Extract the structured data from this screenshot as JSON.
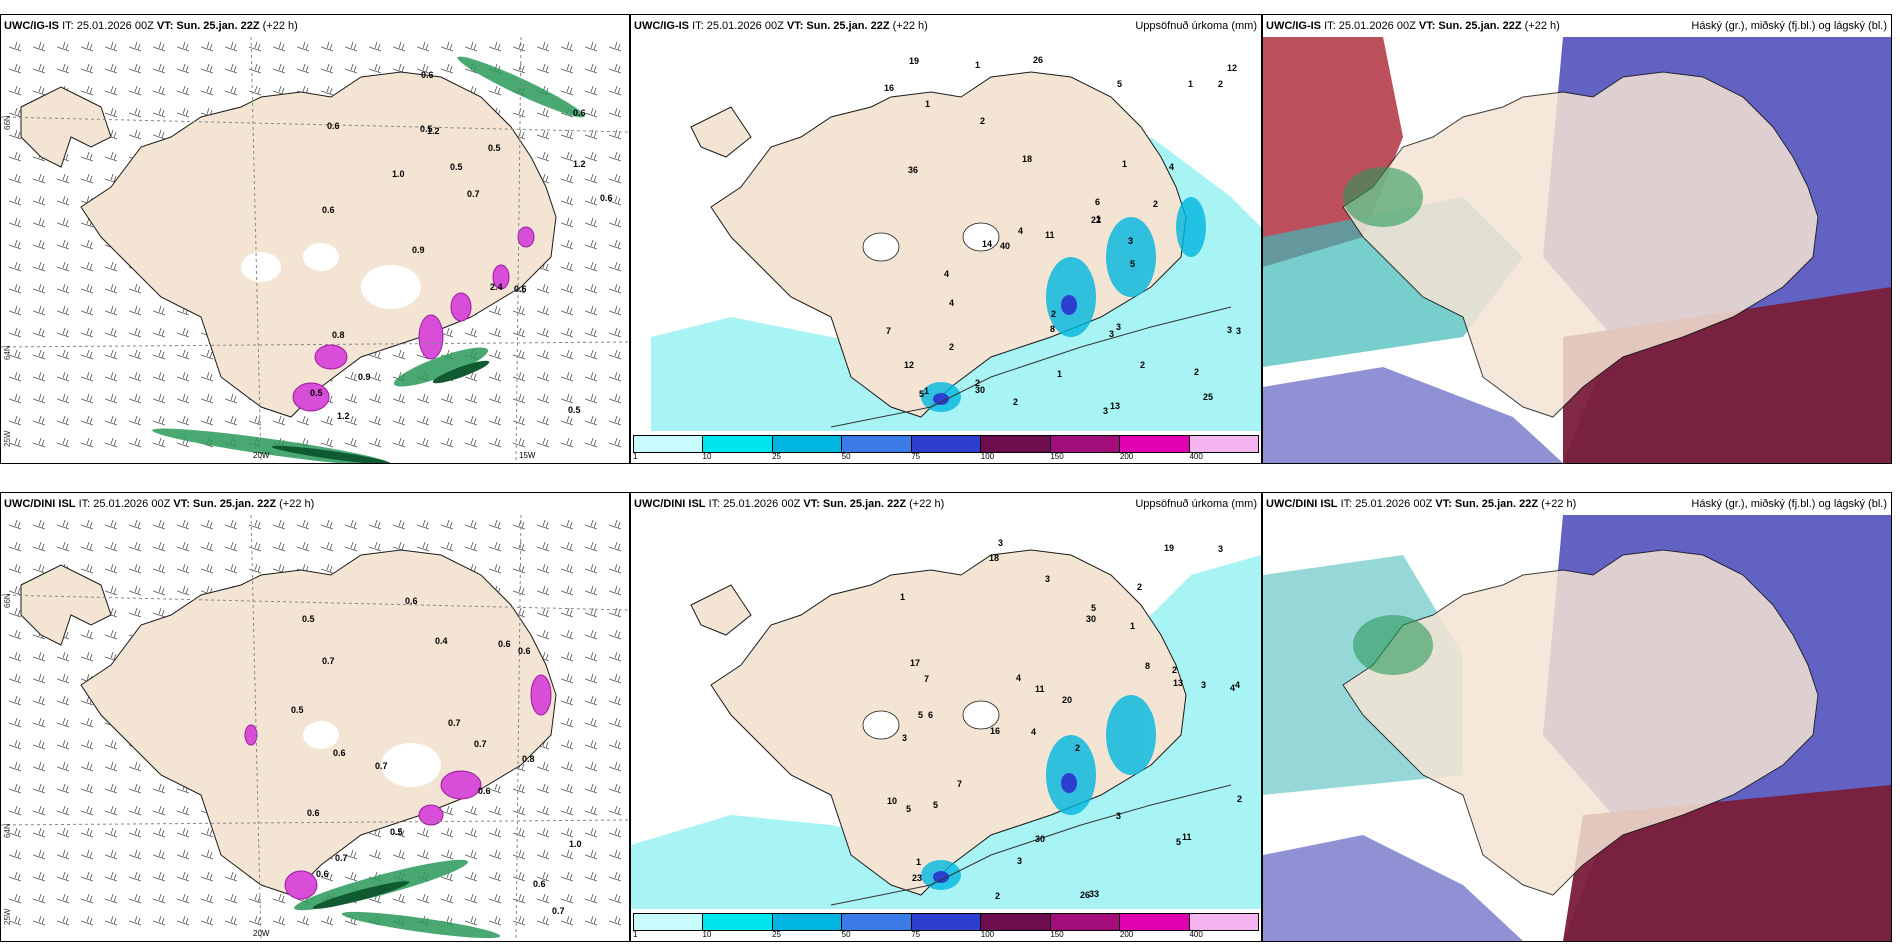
{
  "panels": {
    "p1": {
      "model": "UWC/IG-IS",
      "it": "IT: 25.01.2026 00Z",
      "vt": "VT: Sun. 25.jan. 22Z",
      "lead": "(+22 h)",
      "title": ""
    },
    "p2": {
      "model": "UWC/IG-IS",
      "it": "IT: 25.01.2026 00Z",
      "vt": "VT: Sun. 25.jan. 22Z",
      "lead": "(+22 h)",
      "title": "Uppsöfnuð úrkoma (mm)"
    },
    "p3": {
      "model": "UWC/IG-IS",
      "it": "IT: 25.01.2026 00Z",
      "vt": "VT: Sun. 25.jan. 22Z",
      "lead": "(+22 h)",
      "title": "Háský (gr.), miðský (fj.bl.) og lágský (bl.)"
    },
    "p4": {
      "model": "UWC/DINI ISL",
      "it": "IT: 25.01.2026 00Z",
      "vt": "VT: Sun. 25.jan. 22Z",
      "lead": "(+22 h)",
      "title": ""
    },
    "p5": {
      "model": "UWC/DINI ISL",
      "it": "IT: 25.01.2026 00Z",
      "vt": "VT: Sun. 25.jan. 22Z",
      "lead": "(+22 h)",
      "title": "Uppsöfnuð úrkoma (mm)"
    },
    "p6": {
      "model": "UWC/DINI ISL",
      "it": "IT: 25.01.2026 00Z",
      "vt": "VT: Sun. 25.jan. 22Z",
      "lead": "(+22 h)",
      "title": "Háský (gr.), miðský (fj.bl.) og lágský (bl.)"
    }
  },
  "grid": {
    "lat66": "66N",
    "lat64": "64N",
    "lon20": "20W",
    "lon15": "15W",
    "lon25": "25W"
  },
  "scale": {
    "ticks": [
      "1",
      "10",
      "25",
      "50",
      "75",
      "100",
      "150",
      "200",
      "400"
    ],
    "colors": [
      "#c8fbfc",
      "#00e5ee",
      "#00b6e0",
      "#3a7be8",
      "#2c3fcf",
      "#6d0d4e",
      "#a30d7a",
      "#e000b0",
      "#f3b4ef"
    ]
  },
  "labels": {
    "p1": [
      "0.5",
      "0.6",
      "0.6",
      "0.9",
      "0.5",
      "1.2",
      "0.5",
      "0.5",
      "0.8",
      "1.0",
      "0.5",
      "0.9",
      "1.2",
      "0.7",
      "0.6",
      "0.6",
      "0.6",
      "0.6",
      "2.4",
      "1.2"
    ],
    "p2": [
      "2",
      "3",
      "2",
      "2",
      "1",
      "1",
      "14",
      "25",
      "26",
      "18",
      "1",
      "1",
      "4",
      "8",
      "5",
      "22",
      "36",
      "30",
      "40",
      "16",
      "3",
      "12",
      "6",
      "5",
      "4",
      "4",
      "7",
      "4",
      "19",
      "5",
      "11",
      "13",
      "2",
      "2",
      "2",
      "3",
      "3",
      "12",
      "1",
      "2",
      "1",
      "2",
      "3",
      "1",
      "2",
      "3"
    ],
    "p4": [
      "0.7",
      "0.6",
      "0.6",
      "0.5",
      "1.0",
      "0.7",
      "0.7",
      "0.7",
      "0.6",
      "0.4",
      "0.6",
      "0.6",
      "0.5",
      "0.6",
      "0.7",
      "0.6",
      "0.8",
      "0.7",
      "0.5",
      "0.6"
    ],
    "p5": [
      "3",
      "2",
      "4",
      "4",
      "2",
      "6",
      "1",
      "1",
      "3",
      "30",
      "20",
      "23",
      "18",
      "16",
      "26",
      "33",
      "30",
      "19",
      "8",
      "7",
      "7",
      "5",
      "4",
      "3",
      "10",
      "17",
      "11",
      "13",
      "11",
      "5",
      "5",
      "5",
      "5",
      "4",
      "3",
      "2",
      "2",
      "3",
      "3",
      "3",
      "1",
      "2"
    ]
  },
  "colors": {
    "land": "#f4e4d4",
    "coast": "#1a1a1a",
    "cyan": "#a8f4f4",
    "teal": "#3fb8b8",
    "green": "#2a9a5a",
    "darkgreen": "#0f5a30",
    "magenta": "#d84ed8",
    "purple": "#4646b8",
    "maroon": "#7a1e3a",
    "red": "#b03040"
  }
}
